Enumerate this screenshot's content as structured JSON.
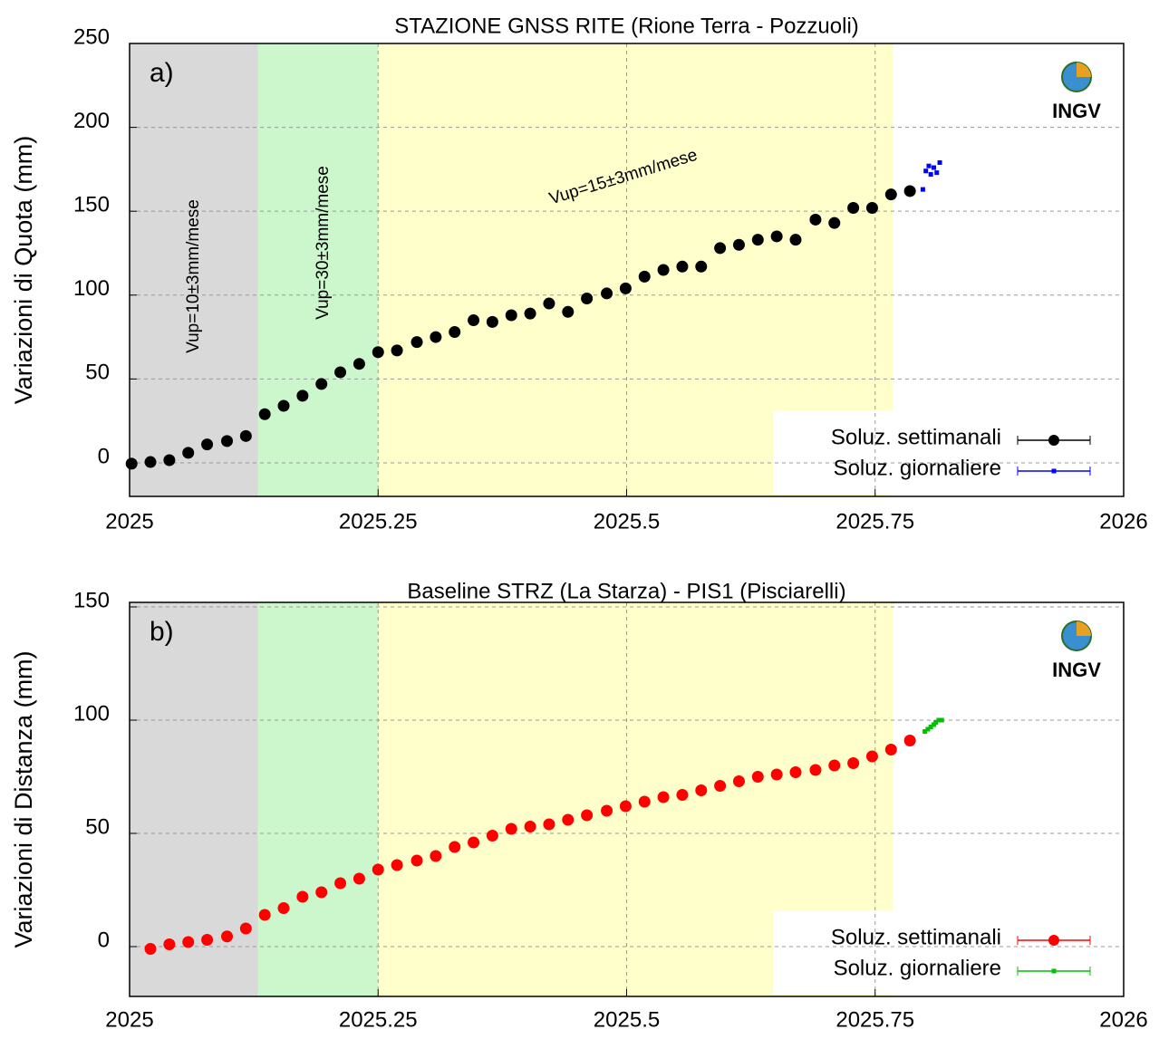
{
  "chart_data": [
    {
      "type": "scatter",
      "panel_label": "a)",
      "logo": "INGV",
      "title": "STAZIONE GNSS RITE (Rione Terra - Pozzuoli)",
      "y_label": "Variazioni di Quota (mm)",
      "xlim": [
        2025,
        2026
      ],
      "xticks": [
        2025,
        2025.25,
        2025.5,
        2025.75,
        2026
      ],
      "ylim": [
        -20,
        250
      ],
      "yticks": [
        0,
        50,
        100,
        150,
        200,
        250
      ],
      "grid": true,
      "legend": "bottom-right",
      "bands": [
        {
          "start": 2025,
          "end": 2025.129,
          "color": "#d9d9d9"
        },
        {
          "start": 2025.129,
          "end": 2025.25,
          "color": "#ccf7cc"
        },
        {
          "start": 2025.25,
          "end": 2025.768,
          "color": "#ffffcc"
        }
      ],
      "annotations": [
        "Vup=10±3mm/mese",
        "Vup=30±3mm/mese",
        "Vup=15±3mm/mese"
      ],
      "series": [
        {
          "name": "Soluz. settimanali",
          "color": "#000000",
          "marker": "circle",
          "x": [
            2025.002,
            2025.021,
            2025.04,
            2025.059,
            2025.078,
            2025.098,
            2025.117,
            2025.136,
            2025.155,
            2025.174,
            2025.193,
            2025.212,
            2025.231,
            2025.25,
            2025.269,
            2025.289,
            2025.308,
            2025.327,
            2025.346,
            2025.365,
            2025.384,
            2025.403,
            2025.422,
            2025.441,
            2025.46,
            2025.48,
            2025.499,
            2025.518,
            2025.537,
            2025.556,
            2025.575,
            2025.594,
            2025.613,
            2025.632,
            2025.651,
            2025.67,
            2025.69,
            2025.709,
            2025.728,
            2025.747,
            2025.766,
            2025.785
          ],
          "values": [
            -0.5,
            0.5,
            1.6,
            6,
            11,
            13,
            16,
            29,
            34,
            40,
            47,
            54,
            59,
            66,
            67,
            72,
            75,
            78,
            85,
            84,
            88,
            89,
            95,
            90,
            98,
            101,
            104,
            111,
            115,
            117,
            117,
            128,
            130,
            133,
            135,
            133,
            145,
            143,
            152,
            152,
            160,
            162
          ]
        },
        {
          "name": "Soluz. giornaliere",
          "color": "#0000ff",
          "marker": "square",
          "x": [
            2025.798,
            2025.801,
            2025.804,
            2025.806,
            2025.809,
            2025.812,
            2025.815
          ],
          "values": [
            163,
            174,
            177,
            172,
            176,
            173,
            179
          ]
        }
      ]
    },
    {
      "type": "scatter",
      "panel_label": "b)",
      "logo": "INGV",
      "title": "Baseline STRZ (La Starza) - PIS1 (Pisciarelli)",
      "y_label": "Variazioni di Distanza (mm)",
      "xlim": [
        2025,
        2026
      ],
      "xticks": [
        2025,
        2025.25,
        2025.5,
        2025.75,
        2026
      ],
      "ylim": [
        -22,
        152
      ],
      "yticks": [
        0,
        50,
        100,
        150
      ],
      "grid": true,
      "legend": "bottom-right",
      "bands": [
        {
          "start": 2025,
          "end": 2025.129,
          "color": "#d9d9d9"
        },
        {
          "start": 2025.129,
          "end": 2025.25,
          "color": "#ccf7cc"
        },
        {
          "start": 2025.25,
          "end": 2025.768,
          "color": "#ffffcc"
        }
      ],
      "series": [
        {
          "name": "Soluz. settimanali",
          "color": "#ff0000",
          "marker": "circle",
          "x": [
            2025.021,
            2025.04,
            2025.059,
            2025.078,
            2025.098,
            2025.117,
            2025.136,
            2025.155,
            2025.174,
            2025.193,
            2025.212,
            2025.231,
            2025.25,
            2025.269,
            2025.289,
            2025.308,
            2025.327,
            2025.346,
            2025.365,
            2025.384,
            2025.403,
            2025.422,
            2025.441,
            2025.46,
            2025.48,
            2025.499,
            2025.518,
            2025.537,
            2025.556,
            2025.575,
            2025.594,
            2025.613,
            2025.632,
            2025.651,
            2025.67,
            2025.69,
            2025.709,
            2025.728,
            2025.747,
            2025.766,
            2025.785
          ],
          "values": [
            -1,
            1,
            2,
            3,
            4.5,
            8,
            14,
            17,
            22,
            24,
            28,
            30,
            34,
            36,
            38,
            40,
            44,
            46,
            49,
            52,
            53,
            54,
            56,
            58,
            60,
            62,
            64,
            66,
            67,
            69,
            71,
            73,
            75,
            76,
            77,
            78,
            80,
            81,
            84,
            87,
            91
          ]
        },
        {
          "name": "Soluz. giornaliere",
          "color": "#00c000",
          "marker": "square",
          "x": [
            2025.8,
            2025.803,
            2025.806,
            2025.809,
            2025.811,
            2025.814,
            2025.817
          ],
          "values": [
            95,
            96,
            97,
            98,
            99,
            100,
            100
          ]
        }
      ]
    }
  ]
}
